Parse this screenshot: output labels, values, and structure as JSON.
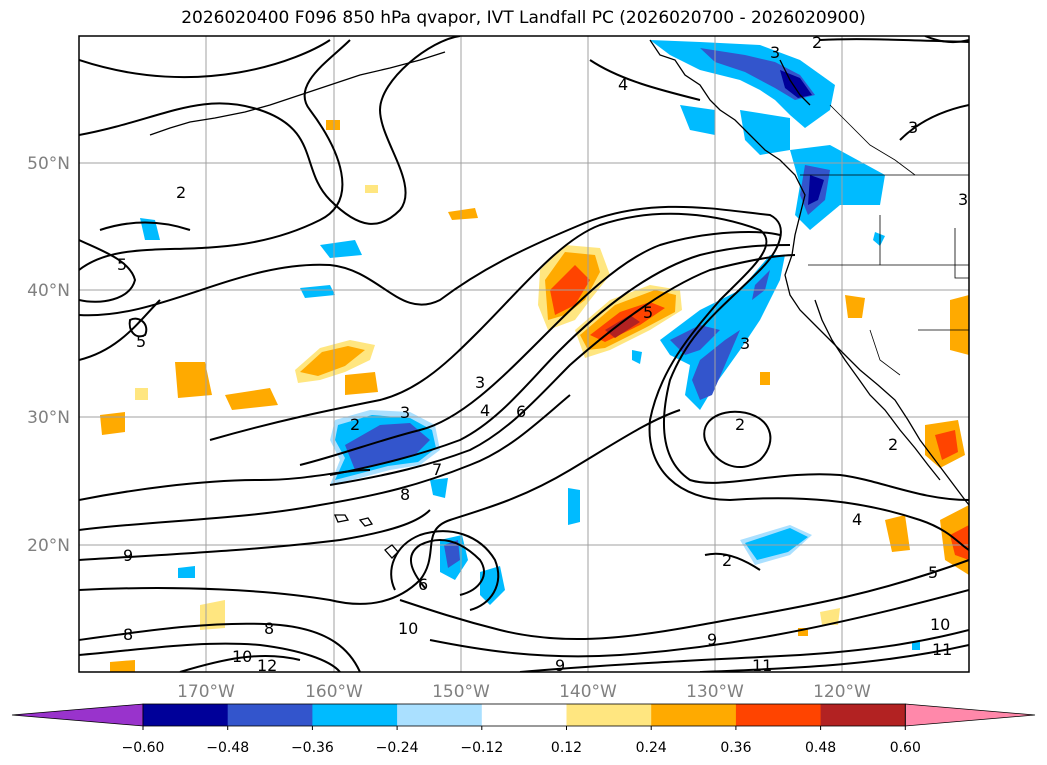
{
  "title": "2026020400 F096 850 hPa qvapor, IVT Landfall PC (2026020700 - 2026020900)",
  "lon_labels": [
    "170°W",
    "160°W",
    "150°W",
    "140°W",
    "130°W",
    "120°W"
  ],
  "lat_labels": [
    "50°N",
    "40°N",
    "30°N",
    "20°N"
  ],
  "contour_labels": [
    "2",
    "5",
    "5",
    "2",
    "3",
    "4",
    "6",
    "8",
    "7",
    "9",
    "6",
    "8",
    "8",
    "10",
    "10",
    "12",
    "9",
    "11",
    "9",
    "10",
    "11",
    "5",
    "3",
    "3",
    "2",
    "4",
    "2",
    "3",
    "2",
    "2",
    "3",
    "4",
    "5",
    "3"
  ],
  "colorbar": {
    "ticks": [
      "−0.60",
      "−0.48",
      "−0.36",
      "−0.24",
      "−0.12",
      "0.12",
      "0.24",
      "0.36",
      "0.48",
      "0.60"
    ],
    "colors": [
      "#9933cc",
      "#000099",
      "#3355cc",
      "#00bbff",
      "#aae0ff",
      "#ffffff",
      "#ffe680",
      "#ffaa00",
      "#ff4400",
      "#b22222",
      "#ff88aa"
    ]
  }
}
